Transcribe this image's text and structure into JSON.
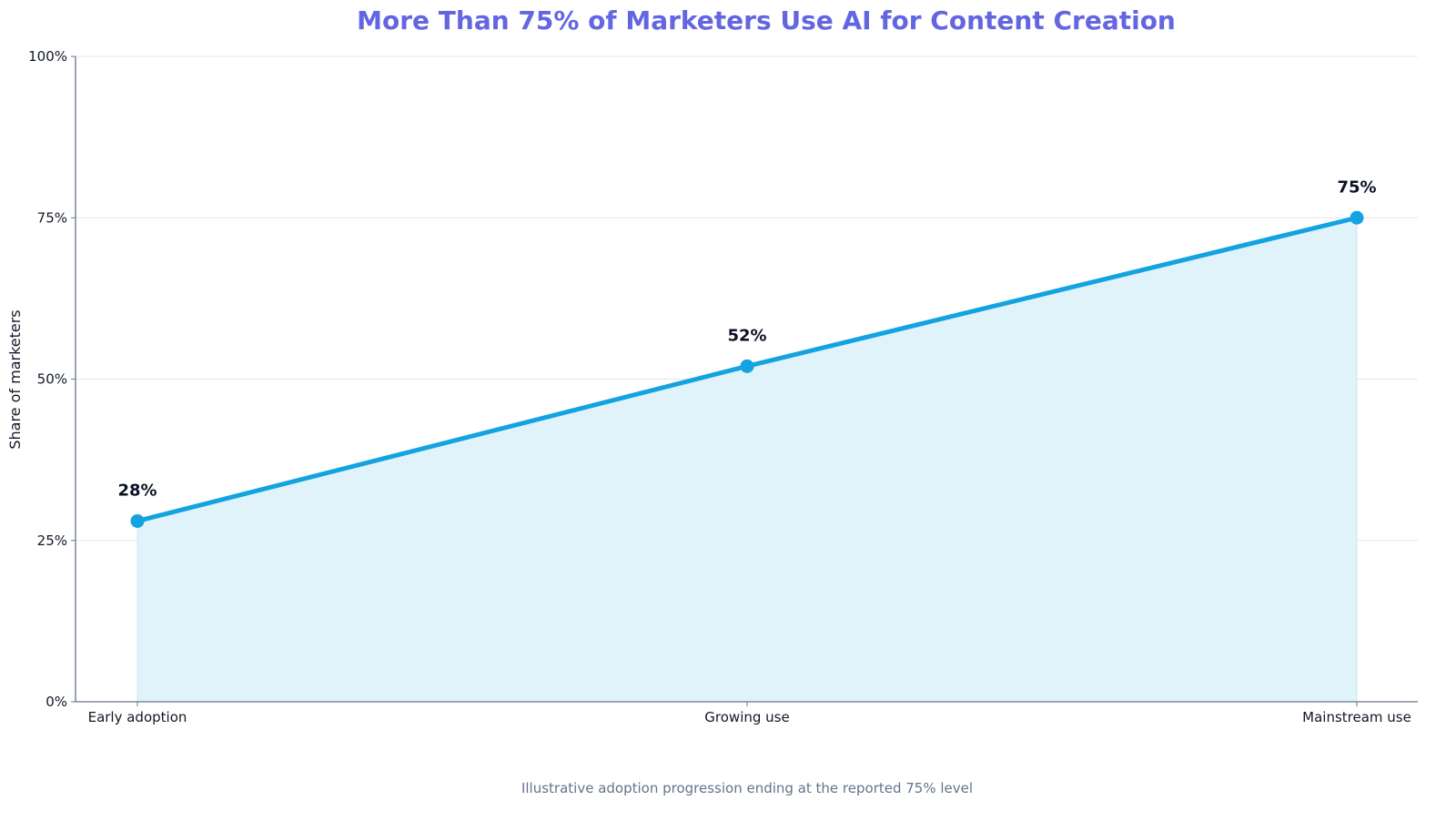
{
  "chart_data": {
    "type": "area",
    "title": "More Than 75% of Marketers Use AI for Content Creation",
    "subtitle": "Illustrative adoption progression ending at the reported 75% level",
    "xlabel": "",
    "ylabel": "Share of marketers",
    "categories": [
      "Early adoption",
      "Growing use",
      "Mainstream use"
    ],
    "values": [
      28,
      52,
      75
    ],
    "data_labels": [
      "28%",
      "52%",
      "75%"
    ],
    "ylim": [
      0,
      100
    ],
    "yticks": [
      0,
      25,
      50,
      75,
      100
    ],
    "ytick_labels": [
      "0%",
      "25%",
      "50%",
      "75%",
      "100%"
    ],
    "grid": true,
    "legend": "none"
  },
  "colors": {
    "title": "#6366e0",
    "line": "#12a3e0",
    "fill": "#e0f3fa",
    "grid": "#e5e7eb",
    "axis": "#64748b",
    "caption": "#64748b"
  }
}
